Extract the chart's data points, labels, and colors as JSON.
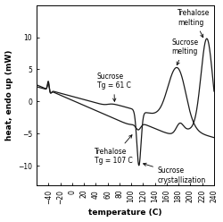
{
  "title": "",
  "xlabel": "temperature (C)",
  "ylabel": "heat, endo up (mW)",
  "xlim": [
    -60,
    240
  ],
  "ylim": [
    -13,
    15
  ],
  "xticks": [
    -40,
    -20,
    0,
    20,
    40,
    60,
    80,
    100,
    120,
    140,
    160,
    180,
    200,
    220,
    240
  ],
  "yticks": [
    -10,
    -5,
    0,
    5,
    10
  ],
  "background_color": "#ffffff",
  "line_color": "#1a1a1a"
}
